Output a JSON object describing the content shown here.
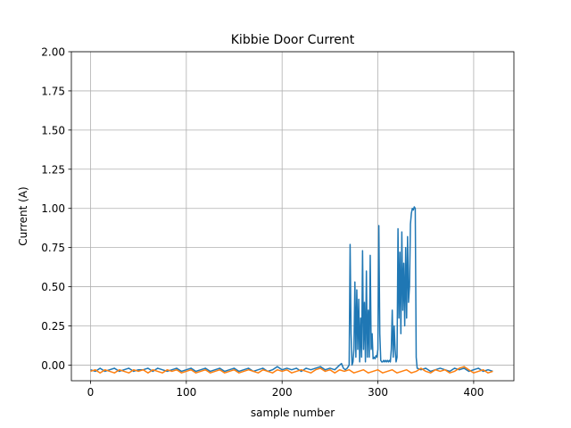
{
  "chart_data": {
    "type": "line",
    "title": "Kibbie Door Current",
    "xlabel": "sample number",
    "ylabel": "Current (A)",
    "xlim": [
      -20,
      442
    ],
    "ylim": [
      -0.1,
      2.0
    ],
    "xticks": [
      0,
      100,
      200,
      300,
      400
    ],
    "xtick_labels": [
      "0",
      "100",
      "200",
      "300",
      "400"
    ],
    "yticks": [
      0.0,
      0.25,
      0.5,
      0.75,
      1.0,
      1.25,
      1.5,
      1.75,
      2.0
    ],
    "ytick_labels": [
      "0.00",
      "0.25",
      "0.50",
      "0.75",
      "1.00",
      "1.25",
      "1.50",
      "1.75",
      "2.00"
    ],
    "grid": true,
    "series": [
      {
        "color": "#1f77b4",
        "points": [
          [
            0,
            -0.03
          ],
          [
            5,
            -0.04
          ],
          [
            10,
            -0.02
          ],
          [
            15,
            -0.04
          ],
          [
            20,
            -0.03
          ],
          [
            25,
            -0.02
          ],
          [
            30,
            -0.04
          ],
          [
            35,
            -0.03
          ],
          [
            40,
            -0.02
          ],
          [
            45,
            -0.04
          ],
          [
            50,
            -0.03
          ],
          [
            55,
            -0.03
          ],
          [
            60,
            -0.02
          ],
          [
            65,
            -0.04
          ],
          [
            70,
            -0.02
          ],
          [
            75,
            -0.03
          ],
          [
            80,
            -0.04
          ],
          [
            85,
            -0.03
          ],
          [
            90,
            -0.02
          ],
          [
            95,
            -0.04
          ],
          [
            100,
            -0.03
          ],
          [
            105,
            -0.02
          ],
          [
            110,
            -0.04
          ],
          [
            115,
            -0.03
          ],
          [
            120,
            -0.02
          ],
          [
            125,
            -0.04
          ],
          [
            130,
            -0.03
          ],
          [
            135,
            -0.02
          ],
          [
            140,
            -0.04
          ],
          [
            145,
            -0.03
          ],
          [
            150,
            -0.02
          ],
          [
            155,
            -0.04
          ],
          [
            160,
            -0.03
          ],
          [
            165,
            -0.02
          ],
          [
            170,
            -0.04
          ],
          [
            175,
            -0.03
          ],
          [
            180,
            -0.02
          ],
          [
            185,
            -0.04
          ],
          [
            190,
            -0.03
          ],
          [
            195,
            -0.01
          ],
          [
            200,
            -0.03
          ],
          [
            205,
            -0.02
          ],
          [
            210,
            -0.03
          ],
          [
            215,
            -0.02
          ],
          [
            220,
            -0.04
          ],
          [
            225,
            -0.02
          ],
          [
            230,
            -0.03
          ],
          [
            235,
            -0.02
          ],
          [
            240,
            -0.01
          ],
          [
            245,
            -0.03
          ],
          [
            250,
            -0.02
          ],
          [
            255,
            -0.03
          ],
          [
            260,
            0.0
          ],
          [
            262,
            0.01
          ],
          [
            264,
            -0.02
          ],
          [
            266,
            -0.03
          ],
          [
            268,
            -0.02
          ],
          [
            270,
            0.0
          ],
          [
            271,
            0.77
          ],
          [
            272,
            0.2
          ],
          [
            273,
            0.0
          ],
          [
            274,
            0.02
          ],
          [
            275,
            0.1
          ],
          [
            276,
            0.53
          ],
          [
            277,
            0.05
          ],
          [
            278,
            0.48
          ],
          [
            279,
            0.1
          ],
          [
            280,
            0.42
          ],
          [
            281,
            0.02
          ],
          [
            282,
            0.3
          ],
          [
            283,
            0.05
          ],
          [
            284,
            0.73
          ],
          [
            285,
            0.1
          ],
          [
            286,
            0.4
          ],
          [
            287,
            0.02
          ],
          [
            288,
            0.6
          ],
          [
            289,
            0.05
          ],
          [
            290,
            0.35
          ],
          [
            291,
            0.05
          ],
          [
            292,
            0.7
          ],
          [
            293,
            0.1
          ],
          [
            294,
            0.2
          ],
          [
            295,
            0.04
          ],
          [
            296,
            0.05
          ],
          [
            297,
            0.04
          ],
          [
            298,
            0.06
          ],
          [
            299,
            0.05
          ],
          [
            300,
            0.1
          ],
          [
            301,
            0.89
          ],
          [
            302,
            0.2
          ],
          [
            303,
            0.03
          ],
          [
            304,
            0.02
          ],
          [
            305,
            0.02
          ],
          [
            306,
            0.03
          ],
          [
            307,
            0.02
          ],
          [
            308,
            0.03
          ],
          [
            309,
            0.02
          ],
          [
            310,
            0.03
          ],
          [
            311,
            0.02
          ],
          [
            312,
            0.03
          ],
          [
            313,
            0.02
          ],
          [
            314,
            0.1
          ],
          [
            315,
            0.35
          ],
          [
            316,
            0.05
          ],
          [
            317,
            0.25
          ],
          [
            318,
            0.1
          ],
          [
            319,
            0.02
          ],
          [
            320,
            0.05
          ],
          [
            321,
            0.87
          ],
          [
            322,
            0.3
          ],
          [
            323,
            0.72
          ],
          [
            324,
            0.2
          ],
          [
            325,
            0.85
          ],
          [
            326,
            0.35
          ],
          [
            327,
            0.65
          ],
          [
            328,
            0.25
          ],
          [
            329,
            0.75
          ],
          [
            330,
            0.3
          ],
          [
            331,
            0.82
          ],
          [
            332,
            0.4
          ],
          [
            333,
            0.5
          ],
          [
            334,
            0.9
          ],
          [
            335,
            0.97
          ],
          [
            336,
            1.0
          ],
          [
            337,
            0.99
          ],
          [
            338,
            1.01
          ],
          [
            339,
            1.0
          ],
          [
            340,
            0.05
          ],
          [
            341,
            -0.02
          ],
          [
            345,
            -0.03
          ],
          [
            350,
            -0.02
          ],
          [
            355,
            -0.04
          ],
          [
            360,
            -0.03
          ],
          [
            365,
            -0.02
          ],
          [
            370,
            -0.03
          ],
          [
            375,
            -0.04
          ],
          [
            380,
            -0.02
          ],
          [
            385,
            -0.03
          ],
          [
            390,
            -0.02
          ],
          [
            395,
            -0.04
          ],
          [
            400,
            -0.03
          ],
          [
            405,
            -0.02
          ],
          [
            410,
            -0.04
          ],
          [
            415,
            -0.03
          ],
          [
            420,
            -0.04
          ]
        ]
      },
      {
        "color": "#ff7f0e",
        "points": [
          [
            0,
            -0.04
          ],
          [
            5,
            -0.03
          ],
          [
            10,
            -0.05
          ],
          [
            15,
            -0.03
          ],
          [
            20,
            -0.04
          ],
          [
            25,
            -0.05
          ],
          [
            30,
            -0.03
          ],
          [
            35,
            -0.04
          ],
          [
            40,
            -0.05
          ],
          [
            45,
            -0.03
          ],
          [
            50,
            -0.04
          ],
          [
            55,
            -0.03
          ],
          [
            60,
            -0.05
          ],
          [
            65,
            -0.03
          ],
          [
            70,
            -0.04
          ],
          [
            75,
            -0.05
          ],
          [
            80,
            -0.03
          ],
          [
            85,
            -0.04
          ],
          [
            90,
            -0.03
          ],
          [
            95,
            -0.05
          ],
          [
            100,
            -0.04
          ],
          [
            105,
            -0.03
          ],
          [
            110,
            -0.05
          ],
          [
            115,
            -0.04
          ],
          [
            120,
            -0.03
          ],
          [
            125,
            -0.05
          ],
          [
            130,
            -0.04
          ],
          [
            135,
            -0.03
          ],
          [
            140,
            -0.05
          ],
          [
            145,
            -0.04
          ],
          [
            150,
            -0.03
          ],
          [
            155,
            -0.05
          ],
          [
            160,
            -0.04
          ],
          [
            165,
            -0.03
          ],
          [
            170,
            -0.04
          ],
          [
            175,
            -0.05
          ],
          [
            180,
            -0.03
          ],
          [
            185,
            -0.04
          ],
          [
            190,
            -0.05
          ],
          [
            195,
            -0.03
          ],
          [
            200,
            -0.04
          ],
          [
            205,
            -0.03
          ],
          [
            210,
            -0.05
          ],
          [
            215,
            -0.04
          ],
          [
            220,
            -0.03
          ],
          [
            225,
            -0.04
          ],
          [
            230,
            -0.05
          ],
          [
            235,
            -0.03
          ],
          [
            240,
            -0.02
          ],
          [
            245,
            -0.04
          ],
          [
            250,
            -0.03
          ],
          [
            255,
            -0.05
          ],
          [
            260,
            -0.03
          ],
          [
            265,
            -0.04
          ],
          [
            270,
            -0.03
          ],
          [
            275,
            -0.05
          ],
          [
            280,
            -0.04
          ],
          [
            285,
            -0.03
          ],
          [
            290,
            -0.05
          ],
          [
            295,
            -0.04
          ],
          [
            300,
            -0.03
          ],
          [
            305,
            -0.05
          ],
          [
            310,
            -0.04
          ],
          [
            315,
            -0.03
          ],
          [
            320,
            -0.05
          ],
          [
            325,
            -0.04
          ],
          [
            330,
            -0.03
          ],
          [
            335,
            -0.05
          ],
          [
            340,
            -0.04
          ],
          [
            345,
            -0.02
          ],
          [
            350,
            -0.04
          ],
          [
            355,
            -0.05
          ],
          [
            360,
            -0.03
          ],
          [
            365,
            -0.04
          ],
          [
            370,
            -0.03
          ],
          [
            375,
            -0.05
          ],
          [
            380,
            -0.04
          ],
          [
            385,
            -0.02
          ],
          [
            390,
            -0.01
          ],
          [
            395,
            -0.03
          ],
          [
            400,
            -0.05
          ],
          [
            405,
            -0.04
          ],
          [
            410,
            -0.03
          ],
          [
            415,
            -0.05
          ],
          [
            420,
            -0.04
          ]
        ]
      }
    ]
  }
}
